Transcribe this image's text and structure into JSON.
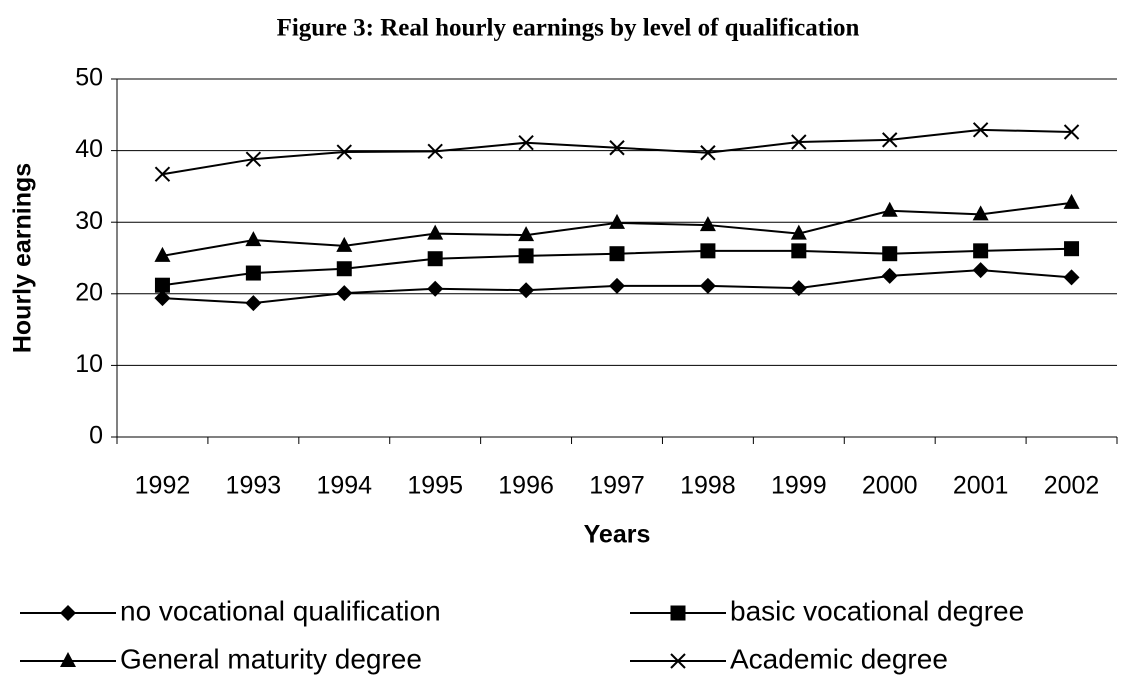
{
  "chart_data": {
    "type": "line",
    "title": "Figure 3: Real hourly earnings by level of qualification",
    "x_label": "Years",
    "y_label": "Hourly earnings",
    "categories": [
      "1992",
      "1993",
      "1994",
      "1995",
      "1996",
      "1997",
      "1998",
      "1999",
      "2000",
      "2001",
      "2002"
    ],
    "series": [
      {
        "name": "no vocational qualification",
        "color": "#000000",
        "marker": "diamond",
        "values": [
          19.4,
          18.7,
          20.1,
          20.7,
          20.5,
          21.1,
          21.1,
          20.8,
          22.5,
          23.3,
          22.3
        ]
      },
      {
        "name": "basic vocational degree",
        "color": "#000000",
        "marker": "square",
        "values": [
          21.2,
          22.9,
          23.5,
          24.9,
          25.3,
          25.6,
          26.0,
          26.0,
          25.6,
          26.0,
          26.3
        ]
      },
      {
        "name": "General maturity degree",
        "color": "#000000",
        "marker": "triangle",
        "values": [
          25.3,
          27.5,
          26.7,
          28.4,
          28.2,
          29.9,
          29.6,
          28.4,
          31.6,
          31.1,
          32.7
        ]
      },
      {
        "name": "Academic degree",
        "color": "#000000",
        "marker": "x",
        "values": [
          36.7,
          38.8,
          39.8,
          39.9,
          41.1,
          40.4,
          39.7,
          41.2,
          41.5,
          42.9,
          42.6
        ]
      }
    ],
    "ylim": [
      0,
      50
    ],
    "yticks": [
      0,
      10,
      20,
      30,
      40,
      50
    ],
    "grid": true,
    "legend": "bottom"
  }
}
